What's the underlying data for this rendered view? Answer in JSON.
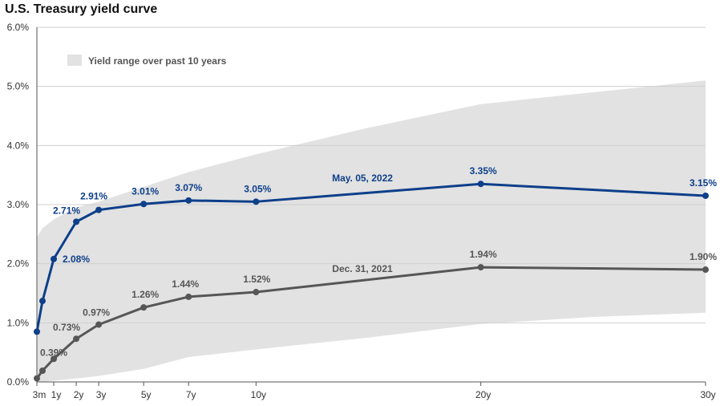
{
  "chart_data": {
    "type": "line",
    "title": "U.S. Treasury yield curve",
    "xlabel": "",
    "ylabel": "",
    "ylim": [
      0,
      6
    ],
    "xlim": [
      0.25,
      30
    ],
    "y_ticks": [
      {
        "value": 0,
        "label": "0.0%"
      },
      {
        "value": 1,
        "label": "1.0%"
      },
      {
        "value": 2,
        "label": "2.0%"
      },
      {
        "value": 3,
        "label": "3.0%"
      },
      {
        "value": 4,
        "label": "4.0%"
      },
      {
        "value": 5,
        "label": "5.0%"
      },
      {
        "value": 6,
        "label": "6.0%"
      }
    ],
    "x_ticks": [
      {
        "value": 0.25,
        "label": "3m"
      },
      {
        "value": 1,
        "label": "1y"
      },
      {
        "value": 2,
        "label": "2y"
      },
      {
        "value": 3,
        "label": "3y"
      },
      {
        "value": 5,
        "label": "5y"
      },
      {
        "value": 7,
        "label": "7y"
      },
      {
        "value": 10,
        "label": "10y"
      },
      {
        "value": 20,
        "label": "20y"
      },
      {
        "value": 30,
        "label": "30y"
      }
    ],
    "legend": {
      "label": "Yield range over past 10 years",
      "color": "#e2e2e2",
      "placement": "top-left"
    },
    "range_band": {
      "name": "Yield range over past 10 years",
      "color": "#e2e2e2",
      "x": [
        0.25,
        0.5,
        1,
        2,
        3,
        5,
        7,
        10,
        15,
        20,
        25,
        30
      ],
      "low": [
        0.0,
        0.0,
        0.02,
        0.06,
        0.1,
        0.22,
        0.42,
        0.55,
        0.75,
        0.98,
        1.1,
        1.17
      ],
      "high": [
        2.45,
        2.6,
        2.75,
        2.95,
        3.05,
        3.3,
        3.55,
        3.85,
        4.3,
        4.7,
        4.9,
        5.1
      ]
    },
    "series": [
      {
        "name": "May. 05, 2022",
        "color": "#0d3f8a",
        "x": [
          0.25,
          0.5,
          1,
          2,
          3,
          5,
          7,
          10,
          20,
          30
        ],
        "values": [
          0.85,
          1.37,
          2.08,
          2.71,
          2.91,
          3.01,
          3.07,
          3.05,
          3.35,
          3.15
        ],
        "labels": [
          "",
          "",
          "2.08%",
          "2.71%",
          "2.91%",
          "3.01%",
          "3.07%",
          "3.05%",
          "3.35%",
          "3.15%"
        ]
      },
      {
        "name": "Dec. 31, 2021",
        "color": "#565656",
        "x": [
          0.25,
          0.5,
          1,
          2,
          3,
          5,
          7,
          10,
          20,
          30
        ],
        "values": [
          0.06,
          0.19,
          0.39,
          0.73,
          0.97,
          1.26,
          1.44,
          1.52,
          1.94,
          1.9
        ],
        "labels": [
          "",
          "",
          "0.39%",
          "0.73%",
          "0.97%",
          "1.26%",
          "1.44%",
          "1.52%",
          "1.94%",
          "1.90%"
        ]
      }
    ]
  }
}
